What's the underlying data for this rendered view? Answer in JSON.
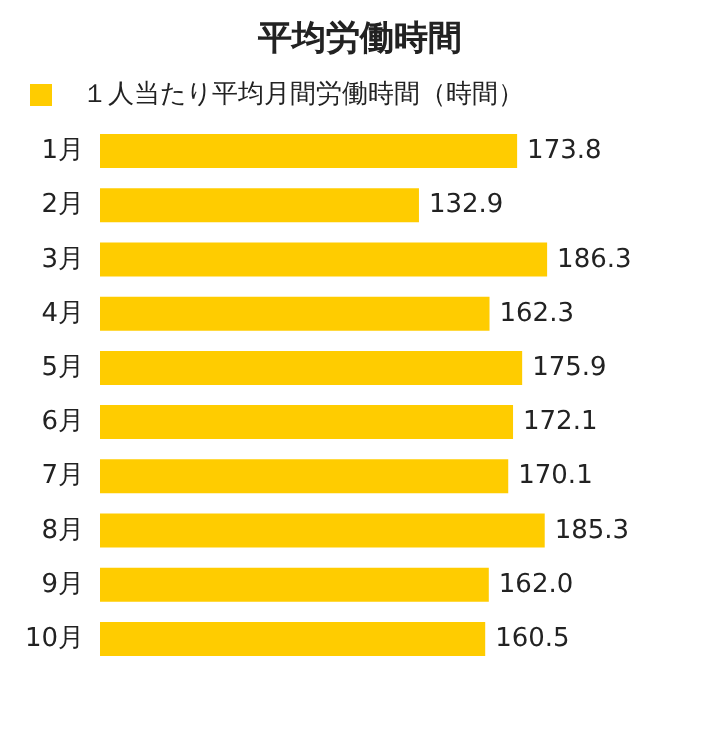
{
  "chart_data": {
    "type": "bar",
    "orientation": "horizontal",
    "title": "平均労働時間",
    "categories": [
      "1月",
      "2月",
      "3月",
      "4月",
      "5月",
      "6月",
      "7月",
      "8月",
      "9月",
      "10月"
    ],
    "series": [
      {
        "name": "１人当たり平均月間労働時間（時間）",
        "color": "#ffcc00",
        "values": [
          173.8,
          132.9,
          186.3,
          162.3,
          175.9,
          172.1,
          170.1,
          185.3,
          162.0,
          160.5
        ],
        "value_labels": [
          "173.8",
          "132.9",
          "186.3",
          "162.3",
          "175.9",
          "172.1",
          "170.1",
          "185.3",
          "162.0",
          "160.5"
        ]
      }
    ],
    "legend": "top left"
  }
}
